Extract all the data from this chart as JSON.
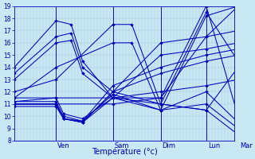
{
  "xlabel": "Température (°c)",
  "bg_color": "#c8e8f4",
  "line_color": "#0000bb",
  "grid_color": "#a0c8dc",
  "ylim": [
    8,
    19
  ],
  "xlim": [
    0,
    290
  ],
  "yticks": [
    8,
    9,
    10,
    11,
    12,
    13,
    14,
    15,
    16,
    17,
    18,
    19
  ],
  "day_labels": [
    "Ven",
    "Sam",
    "Dim",
    "Lun",
    "Mar"
  ],
  "day_x": [
    55,
    130,
    193,
    253,
    295
  ],
  "lines": [
    {
      "x": [
        0,
        55,
        75,
        90,
        130,
        193,
        253,
        295
      ],
      "y": [
        14.0,
        17.8,
        17.5,
        14.5,
        11.5,
        10.5,
        18.2,
        19.0
      ]
    },
    {
      "x": [
        0,
        55,
        75,
        90,
        130,
        193,
        253,
        295
      ],
      "y": [
        13.5,
        16.5,
        16.8,
        14.0,
        12.0,
        11.0,
        18.5,
        14.5
      ]
    },
    {
      "x": [
        0,
        55,
        75,
        90,
        130,
        193,
        253,
        295
      ],
      "y": [
        13.0,
        16.0,
        16.2,
        13.5,
        11.5,
        11.5,
        19.0,
        10.0
      ]
    },
    {
      "x": [
        0,
        55,
        65,
        90,
        130,
        193,
        253,
        295
      ],
      "y": [
        11.5,
        11.5,
        10.2,
        9.8,
        11.5,
        11.0,
        10.5,
        8.5
      ]
    },
    {
      "x": [
        0,
        55,
        65,
        90,
        130,
        193,
        253,
        295
      ],
      "y": [
        11.2,
        11.2,
        10.0,
        9.6,
        11.8,
        10.5,
        12.0,
        9.5
      ]
    },
    {
      "x": [
        0,
        55,
        65,
        90,
        130,
        193,
        253,
        295
      ],
      "y": [
        11.0,
        11.0,
        9.8,
        9.5,
        12.0,
        16.0,
        16.5,
        17.0
      ]
    },
    {
      "x": [
        0,
        55,
        65,
        90,
        130,
        193,
        253,
        295
      ],
      "y": [
        11.0,
        11.0,
        9.8,
        9.5,
        11.5,
        15.0,
        15.5,
        16.0
      ]
    },
    {
      "x": [
        0,
        55,
        65,
        90,
        130,
        193,
        253,
        295
      ],
      "y": [
        11.0,
        11.0,
        9.8,
        9.6,
        12.5,
        14.0,
        15.0,
        15.5
      ]
    },
    {
      "x": [
        0,
        55,
        65,
        90,
        130,
        193,
        253,
        295
      ],
      "y": [
        10.8,
        10.8,
        9.8,
        9.5,
        12.0,
        13.5,
        14.5,
        15.0
      ]
    },
    {
      "x": [
        0,
        55,
        130,
        155,
        193,
        253,
        295
      ],
      "y": [
        12.0,
        13.0,
        17.5,
        17.5,
        11.0,
        10.5,
        14.0
      ]
    },
    {
      "x": [
        0,
        55,
        130,
        155,
        193,
        253,
        295
      ],
      "y": [
        11.5,
        14.0,
        16.0,
        16.0,
        10.5,
        11.0,
        9.0
      ]
    },
    {
      "x": [
        0,
        55,
        130,
        193,
        253,
        295
      ],
      "y": [
        11.2,
        11.5,
        11.5,
        12.0,
        12.5,
        13.0
      ]
    },
    {
      "x": [
        0,
        55,
        130,
        193,
        253,
        295
      ],
      "y": [
        11.0,
        11.0,
        11.0,
        11.5,
        16.5,
        19.0
      ]
    }
  ],
  "n_vgrid": 70,
  "marker_size": 2.0,
  "linewidth": 0.75,
  "ytick_fontsize": 5.5,
  "xlabel_fontsize": 7,
  "day_fontsize": 6
}
